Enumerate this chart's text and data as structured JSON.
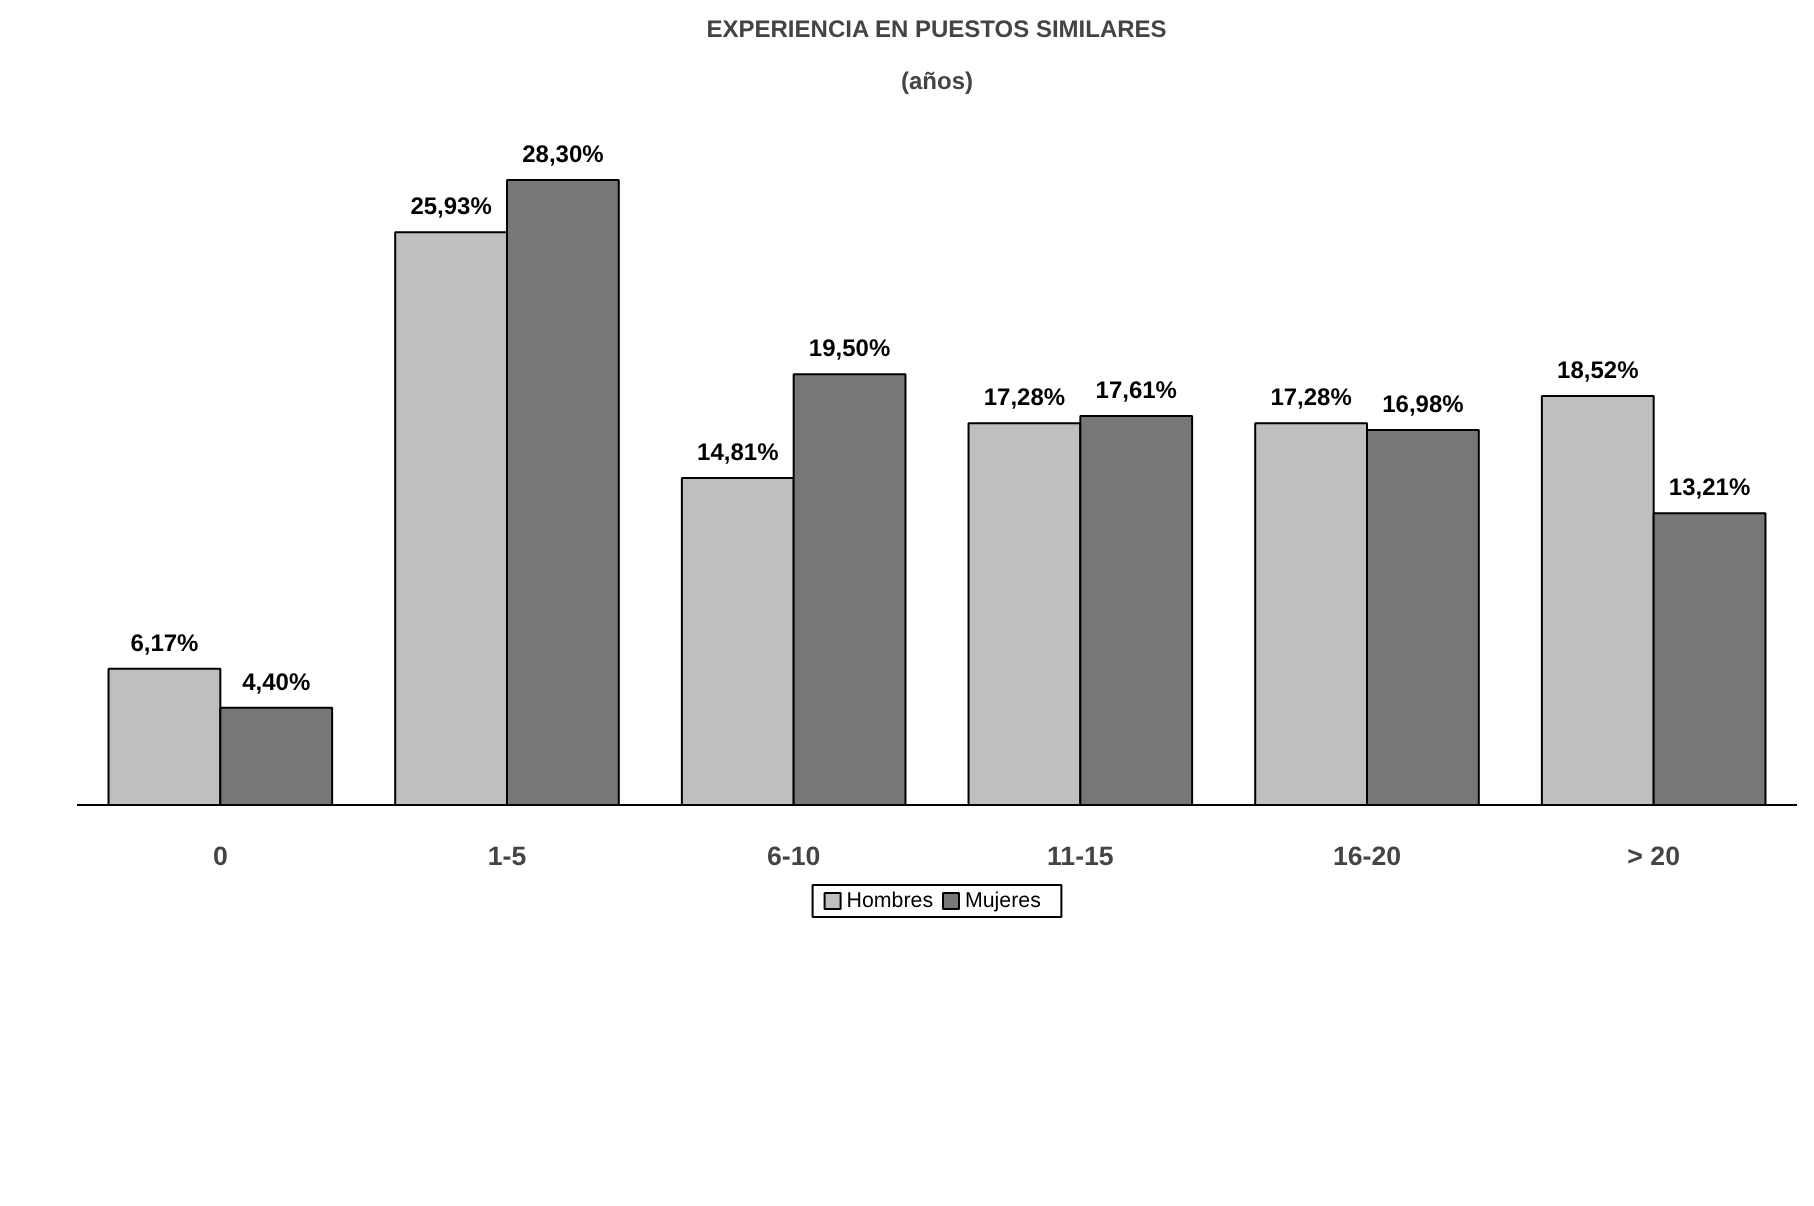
{
  "chart_data": {
    "type": "bar",
    "title": "EXPERIENCIA EN PUESTOS SIMILARES",
    "subtitle": "(años)",
    "categories": [
      "0",
      "1-5",
      "6-10",
      "11-15",
      "16-20",
      "> 20"
    ],
    "series": [
      {
        "name": "Hombres",
        "color": "#bfbfbf",
        "values": [
          6.17,
          25.93,
          14.81,
          17.28,
          17.28,
          18.52
        ],
        "value_labels": [
          "6,17%",
          "25,93%",
          "14,81%",
          "17,28%",
          "17,28%",
          "18,52%"
        ]
      },
      {
        "name": "Mujeres",
        "color": "#777777",
        "values": [
          4.4,
          28.3,
          19.5,
          17.61,
          16.98,
          13.21
        ],
        "value_labels": [
          "4,40%",
          "28,30%",
          "19,50%",
          "17,61%",
          "16,98%",
          "13,21%"
        ]
      }
    ],
    "legend": "bottom"
  }
}
